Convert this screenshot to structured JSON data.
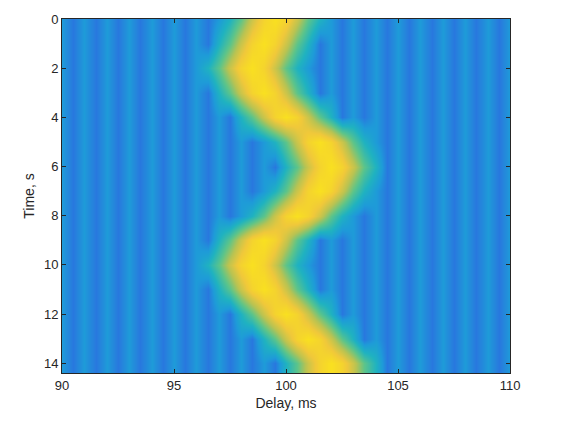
{
  "chart_data": {
    "type": "heatmap",
    "xlabel": "Delay, ms",
    "ylabel": "Time, s",
    "x": [
      90,
      90.5,
      91,
      91.5,
      92,
      92.5,
      93,
      93.5,
      94,
      94.5,
      95,
      95.5,
      96,
      96.5,
      97,
      97.5,
      98,
      98.5,
      99,
      99.5,
      100,
      100.5,
      101,
      101.5,
      102,
      102.5,
      103,
      103.5,
      104,
      104.5,
      105,
      105.5,
      106,
      106.5,
      107,
      107.5,
      108,
      108.5,
      109,
      109.5,
      110
    ],
    "y": [
      0,
      1,
      2,
      3,
      4,
      5,
      6,
      7,
      8,
      9,
      10,
      11,
      12,
      13,
      14
    ],
    "z": [
      [
        0.3,
        0.22,
        0.3,
        0.22,
        0.3,
        0.22,
        0.3,
        0.22,
        0.3,
        0.22,
        0.3,
        0.22,
        0.3,
        0.22,
        0.3,
        0.4,
        0.55,
        0.75,
        0.92,
        1,
        0.92,
        0.75,
        0.55,
        0.4,
        0.3,
        0.22,
        0.3,
        0.22,
        0.3,
        0.22,
        0.3,
        0.22,
        0.3,
        0.22,
        0.3,
        0.22,
        0.3,
        0.22,
        0.3,
        0.22,
        0.3
      ],
      [
        0.3,
        0.22,
        0.3,
        0.22,
        0.3,
        0.22,
        0.3,
        0.22,
        0.3,
        0.22,
        0.3,
        0.22,
        0.3,
        0.22,
        0.4,
        0.55,
        0.75,
        0.92,
        1,
        0.92,
        0.75,
        0.55,
        0.4,
        0.22,
        0.3,
        0.22,
        0.3,
        0.22,
        0.3,
        0.22,
        0.3,
        0.22,
        0.3,
        0.22,
        0.3,
        0.22,
        0.3,
        0.22,
        0.3,
        0.22,
        0.3
      ],
      [
        0.3,
        0.22,
        0.3,
        0.22,
        0.3,
        0.22,
        0.3,
        0.22,
        0.3,
        0.22,
        0.3,
        0.22,
        0.3,
        0.4,
        0.55,
        0.75,
        0.92,
        1,
        0.92,
        0.75,
        0.55,
        0.4,
        0.3,
        0.22,
        0.3,
        0.22,
        0.3,
        0.22,
        0.3,
        0.22,
        0.3,
        0.22,
        0.3,
        0.22,
        0.3,
        0.22,
        0.3,
        0.22,
        0.3,
        0.22,
        0.3
      ],
      [
        0.3,
        0.22,
        0.3,
        0.22,
        0.3,
        0.22,
        0.3,
        0.22,
        0.3,
        0.22,
        0.3,
        0.22,
        0.3,
        0.22,
        0.4,
        0.55,
        0.75,
        0.92,
        1,
        0.92,
        0.75,
        0.55,
        0.4,
        0.22,
        0.3,
        0.22,
        0.3,
        0.22,
        0.3,
        0.22,
        0.3,
        0.22,
        0.3,
        0.22,
        0.3,
        0.22,
        0.3,
        0.22,
        0.3,
        0.22,
        0.3
      ],
      [
        0.3,
        0.22,
        0.3,
        0.22,
        0.3,
        0.22,
        0.3,
        0.22,
        0.3,
        0.22,
        0.3,
        0.22,
        0.3,
        0.22,
        0.3,
        0.22,
        0.4,
        0.55,
        0.75,
        0.92,
        1,
        0.92,
        0.75,
        0.55,
        0.4,
        0.22,
        0.3,
        0.22,
        0.3,
        0.22,
        0.3,
        0.22,
        0.3,
        0.22,
        0.3,
        0.22,
        0.3,
        0.22,
        0.3,
        0.22,
        0.3
      ],
      [
        0.3,
        0.22,
        0.3,
        0.22,
        0.3,
        0.22,
        0.3,
        0.22,
        0.3,
        0.22,
        0.3,
        0.22,
        0.3,
        0.22,
        0.3,
        0.22,
        0.3,
        0.22,
        0.3,
        0.4,
        0.55,
        0.75,
        0.92,
        1,
        0.92,
        0.75,
        0.55,
        0.4,
        0.3,
        0.22,
        0.3,
        0.22,
        0.3,
        0.22,
        0.3,
        0.22,
        0.3,
        0.22,
        0.3,
        0.22,
        0.3
      ],
      [
        0.3,
        0.22,
        0.3,
        0.22,
        0.3,
        0.22,
        0.3,
        0.22,
        0.3,
        0.22,
        0.3,
        0.22,
        0.3,
        0.22,
        0.3,
        0.22,
        0.3,
        0.22,
        0.3,
        0.22,
        0.4,
        0.55,
        0.75,
        0.92,
        1,
        0.92,
        0.75,
        0.55,
        0.4,
        0.22,
        0.3,
        0.22,
        0.3,
        0.22,
        0.3,
        0.22,
        0.3,
        0.22,
        0.3,
        0.22,
        0.3
      ],
      [
        0.3,
        0.22,
        0.3,
        0.22,
        0.3,
        0.22,
        0.3,
        0.22,
        0.3,
        0.22,
        0.3,
        0.22,
        0.3,
        0.22,
        0.3,
        0.22,
        0.3,
        0.22,
        0.3,
        0.4,
        0.55,
        0.75,
        0.92,
        1,
        0.92,
        0.75,
        0.55,
        0.4,
        0.3,
        0.22,
        0.3,
        0.22,
        0.3,
        0.22,
        0.3,
        0.22,
        0.3,
        0.22,
        0.3,
        0.22,
        0.3
      ],
      [
        0.3,
        0.22,
        0.3,
        0.22,
        0.3,
        0.22,
        0.3,
        0.22,
        0.3,
        0.22,
        0.3,
        0.22,
        0.3,
        0.22,
        0.3,
        0.22,
        0.3,
        0.4,
        0.55,
        0.75,
        0.92,
        1,
        0.92,
        0.75,
        0.55,
        0.4,
        0.3,
        0.22,
        0.3,
        0.22,
        0.3,
        0.22,
        0.3,
        0.22,
        0.3,
        0.22,
        0.3,
        0.22,
        0.3,
        0.22,
        0.3
      ],
      [
        0.3,
        0.22,
        0.3,
        0.22,
        0.3,
        0.22,
        0.3,
        0.22,
        0.3,
        0.22,
        0.3,
        0.22,
        0.3,
        0.22,
        0.4,
        0.55,
        0.75,
        0.92,
        1,
        0.92,
        0.75,
        0.55,
        0.4,
        0.22,
        0.3,
        0.22,
        0.3,
        0.22,
        0.3,
        0.22,
        0.3,
        0.22,
        0.3,
        0.22,
        0.3,
        0.22,
        0.3,
        0.22,
        0.3,
        0.22,
        0.3
      ],
      [
        0.3,
        0.22,
        0.3,
        0.22,
        0.3,
        0.22,
        0.3,
        0.22,
        0.3,
        0.22,
        0.3,
        0.22,
        0.3,
        0.4,
        0.55,
        0.75,
        0.92,
        1,
        0.92,
        0.75,
        0.55,
        0.4,
        0.3,
        0.22,
        0.3,
        0.22,
        0.3,
        0.22,
        0.3,
        0.22,
        0.3,
        0.22,
        0.3,
        0.22,
        0.3,
        0.22,
        0.3,
        0.22,
        0.3,
        0.22,
        0.3
      ],
      [
        0.3,
        0.22,
        0.3,
        0.22,
        0.3,
        0.22,
        0.3,
        0.22,
        0.3,
        0.22,
        0.3,
        0.22,
        0.3,
        0.22,
        0.4,
        0.55,
        0.75,
        0.92,
        1,
        0.92,
        0.75,
        0.55,
        0.4,
        0.22,
        0.3,
        0.22,
        0.3,
        0.22,
        0.3,
        0.22,
        0.3,
        0.22,
        0.3,
        0.22,
        0.3,
        0.22,
        0.3,
        0.22,
        0.3,
        0.22,
        0.3
      ],
      [
        0.3,
        0.22,
        0.3,
        0.22,
        0.3,
        0.22,
        0.3,
        0.22,
        0.3,
        0.22,
        0.3,
        0.22,
        0.3,
        0.22,
        0.3,
        0.22,
        0.4,
        0.55,
        0.75,
        0.92,
        1,
        0.92,
        0.75,
        0.55,
        0.4,
        0.22,
        0.3,
        0.22,
        0.3,
        0.22,
        0.3,
        0.22,
        0.3,
        0.22,
        0.3,
        0.22,
        0.3,
        0.22,
        0.3,
        0.22,
        0.3
      ],
      [
        0.3,
        0.22,
        0.3,
        0.22,
        0.3,
        0.22,
        0.3,
        0.22,
        0.3,
        0.22,
        0.3,
        0.22,
        0.3,
        0.22,
        0.3,
        0.22,
        0.3,
        0.22,
        0.4,
        0.55,
        0.75,
        0.92,
        1,
        0.92,
        0.75,
        0.55,
        0.4,
        0.22,
        0.3,
        0.22,
        0.3,
        0.22,
        0.3,
        0.22,
        0.3,
        0.22,
        0.3,
        0.22,
        0.3,
        0.22,
        0.3
      ],
      [
        0.3,
        0.22,
        0.3,
        0.22,
        0.3,
        0.22,
        0.3,
        0.22,
        0.3,
        0.22,
        0.3,
        0.22,
        0.3,
        0.22,
        0.3,
        0.22,
        0.3,
        0.22,
        0.3,
        0.22,
        0.4,
        0.55,
        0.75,
        0.92,
        1,
        0.92,
        0.75,
        0.55,
        0.4,
        0.22,
        0.3,
        0.22,
        0.3,
        0.22,
        0.3,
        0.22,
        0.3,
        0.22,
        0.3,
        0.22,
        0.3
      ]
    ],
    "zlim": [
      0,
      1
    ],
    "xlim": [
      90,
      110
    ],
    "xticks": [
      90,
      95,
      100,
      105,
      110
    ],
    "ylim": [
      0,
      14.4
    ],
    "yticks": [
      0,
      2,
      4,
      6,
      8,
      10,
      12,
      14
    ]
  }
}
